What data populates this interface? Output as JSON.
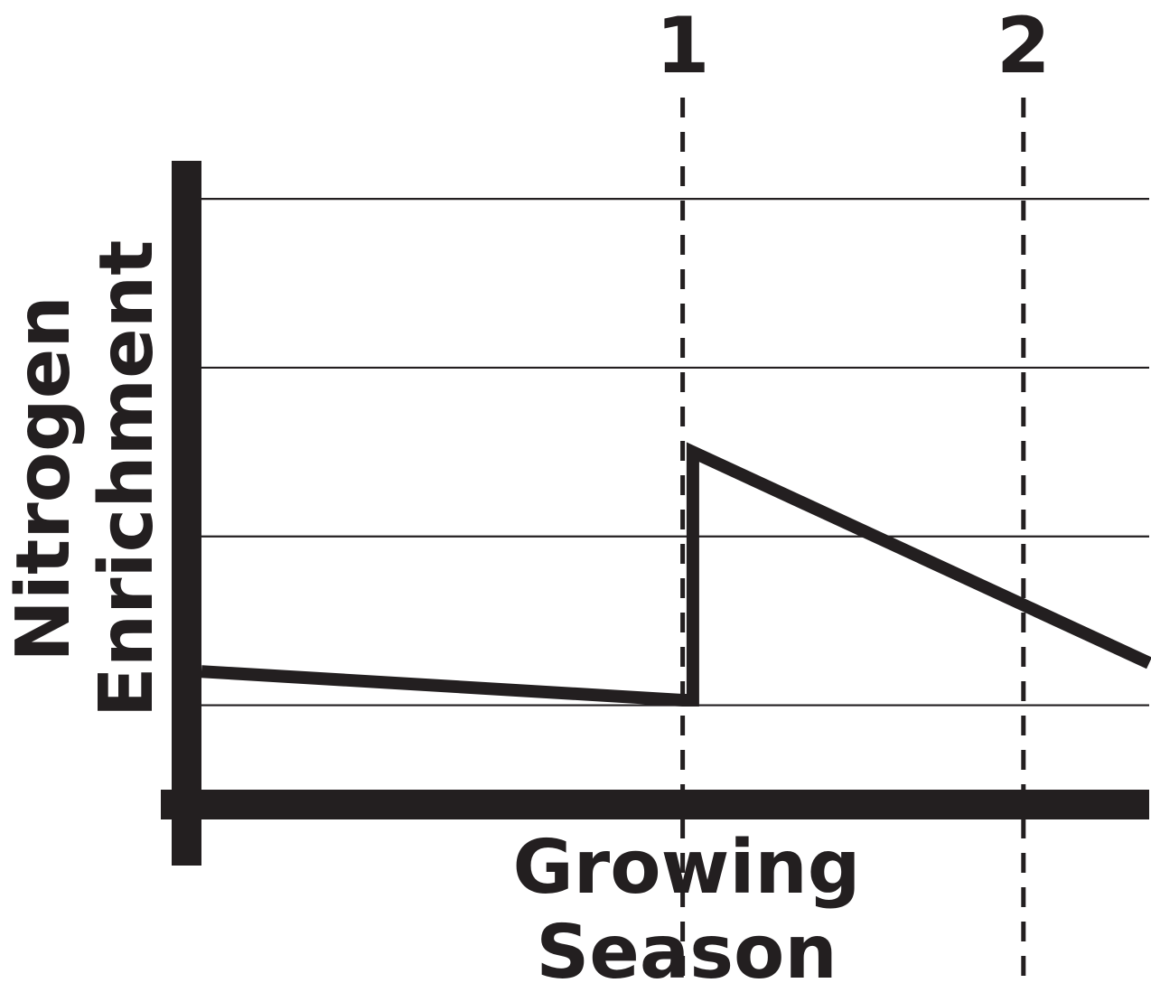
{
  "chart_data": {
    "type": "line",
    "xlabel_lines": [
      "Growing",
      "Season"
    ],
    "ylabel_lines": [
      "Nitrogen",
      "Enrichment"
    ],
    "markers": [
      {
        "label": "1",
        "x": 1
      },
      {
        "label": "2",
        "x": 2
      }
    ],
    "xlim": [
      -0.412,
      2.369
    ],
    "ylim": [
      -0.5,
      3.6
    ],
    "yticks": [
      0,
      1,
      2,
      3
    ],
    "grid": "horizontal",
    "series": [
      {
        "values": [
          {
            "x": -0.412,
            "y": 0.2
          },
          {
            "x": 1.0,
            "y": 0.03
          },
          {
            "x": 1.03,
            "y": 0.03
          },
          {
            "x": 1.03,
            "y": 1.5
          },
          {
            "x": 2.369,
            "y": 0.25
          }
        ]
      }
    ],
    "colors": {
      "ink": "#231f20",
      "background": "#ffffff"
    }
  }
}
